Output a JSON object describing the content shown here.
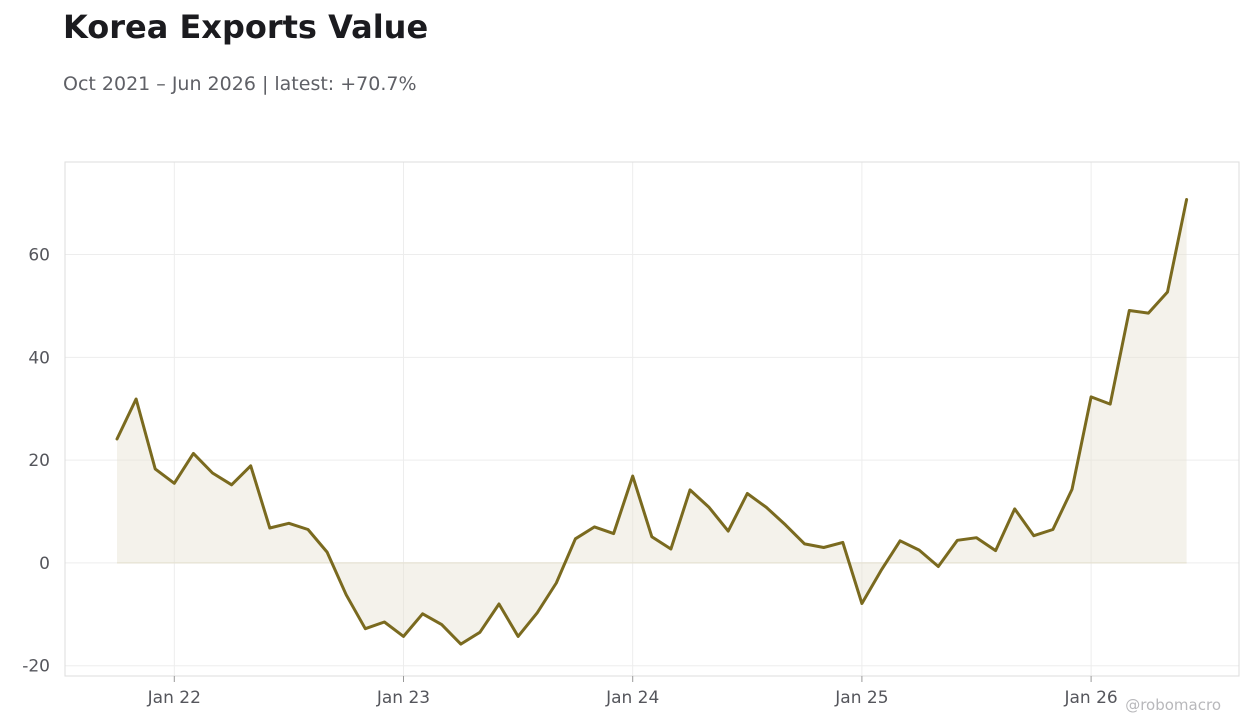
{
  "header": {
    "title": "Korea Exports Value",
    "subtitle": "Oct 2021 – Jun 2026 | latest: +70.7%"
  },
  "watermark": "@robomacro",
  "colors": {
    "line": "#7a6a1f",
    "area": "#e6e2d3",
    "grid": "#ededed",
    "frame": "#dddddd"
  },
  "chart_data": {
    "type": "line",
    "title": "Korea Exports Value",
    "subtitle": "Oct 2021 – Jun 2026 | latest: +70.7%",
    "x_start": "2021-10",
    "x_end": "2026-06",
    "frequency": "monthly",
    "ylim": [
      -22,
      78
    ],
    "yticks": [
      -20,
      0,
      20,
      40,
      60
    ],
    "ytick_labels": [
      "-20",
      "0",
      "20",
      "40",
      "60"
    ],
    "xticks": [
      "2022-01",
      "2023-01",
      "2024-01",
      "2025-01",
      "2026-01"
    ],
    "xtick_labels": [
      "Jan 22",
      "Jan 23",
      "Jan 24",
      "Jan 25",
      "Jan 26"
    ],
    "grid": true,
    "area_fill": true,
    "series": [
      {
        "x": [
          "2021-10",
          "2021-11",
          "2021-12",
          "2022-01",
          "2022-02",
          "2022-03",
          "2022-04",
          "2022-05",
          "2022-06",
          "2022-07",
          "2022-08",
          "2022-09",
          "2022-10",
          "2022-11",
          "2022-12",
          "2023-01",
          "2023-02",
          "2023-03",
          "2023-04",
          "2023-05",
          "2023-06",
          "2023-07",
          "2023-08",
          "2023-09",
          "2023-10",
          "2023-11",
          "2023-12",
          "2024-01",
          "2024-02",
          "2024-03",
          "2024-04",
          "2024-05",
          "2024-06",
          "2024-07",
          "2024-08",
          "2024-09",
          "2024-10",
          "2024-11",
          "2024-12",
          "2025-01",
          "2025-02",
          "2025-03",
          "2025-04",
          "2025-05",
          "2025-06",
          "2025-07",
          "2025-08",
          "2025-09",
          "2025-10",
          "2025-11",
          "2025-12",
          "2026-01",
          "2026-02",
          "2026-03",
          "2026-04",
          "2026-05",
          "2026-06"
        ],
        "values": [
          24.1,
          31.9,
          18.3,
          15.5,
          21.3,
          17.5,
          15.2,
          18.9,
          6.8,
          7.7,
          6.5,
          2.1,
          -6.2,
          -12.8,
          -11.5,
          -14.3,
          -9.9,
          -12.0,
          -15.8,
          -13.5,
          -8.0,
          -14.3,
          -9.7,
          -3.9,
          4.7,
          7.0,
          5.7,
          16.9,
          5.1,
          2.7,
          14.2,
          10.8,
          6.2,
          13.5,
          10.8,
          7.4,
          3.7,
          3.0,
          4.0,
          -7.9,
          -1.5,
          4.3,
          2.5,
          -0.7,
          4.4,
          4.9,
          2.4,
          10.5,
          5.3,
          6.5,
          14.3,
          32.3,
          30.9,
          49.1,
          48.6,
          52.7,
          70.7
        ]
      }
    ]
  }
}
